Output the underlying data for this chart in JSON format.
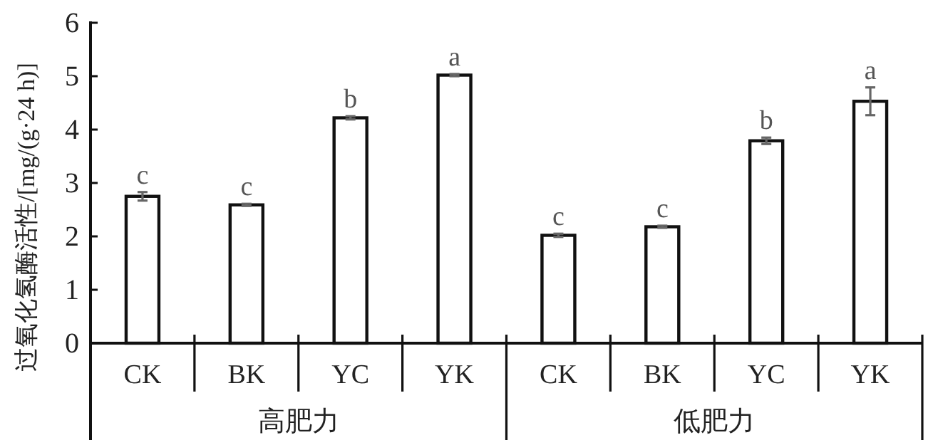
{
  "chart_data": {
    "type": "bar",
    "ylabel": "过氧化氢酶活性/[mg/(g·24 h)]",
    "categories": [
      "CK",
      "BK",
      "YC",
      "YK",
      "CK",
      "BK",
      "YC",
      "YK"
    ],
    "values": [
      2.75,
      2.59,
      4.22,
      5.02,
      2.02,
      2.18,
      3.79,
      4.53
    ],
    "errors": [
      0.08,
      0.02,
      0.03,
      0.02,
      0.03,
      0.02,
      0.06,
      0.26
    ],
    "color": "#ffffff",
    "ylim": [
      0,
      6
    ],
    "yticks": [
      0,
      1,
      2,
      3,
      4,
      5,
      6
    ],
    "value_labels": [
      "c",
      "c",
      "b",
      "a",
      "c",
      "c",
      "b",
      "a"
    ],
    "annotations": [
      "高肥力",
      "低肥力"
    ]
  }
}
